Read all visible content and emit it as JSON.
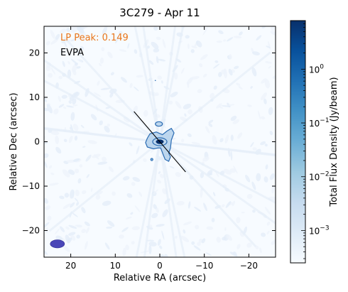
{
  "chart_data": {
    "type": "heatmap",
    "title": "3C279 - Apr 11",
    "xlabel": "Relative RA (arcsec)",
    "ylabel": "Relative Dec (arcsec)",
    "xlim": [
      26,
      -26
    ],
    "ylim": [
      -26,
      26
    ],
    "x_ticks": [
      20,
      10,
      0,
      -10,
      -20
    ],
    "x_tick_labels": [
      "20",
      "10",
      "0",
      "−10",
      "−20"
    ],
    "y_ticks": [
      20,
      10,
      0,
      -10,
      -20
    ],
    "y_tick_labels": [
      "20",
      "10",
      "0",
      "−10",
      "−20"
    ],
    "grid": false,
    "colorbar": {
      "label": "Total Flux Density (Jy/beam)",
      "scale": "log",
      "range": [
        0.00025,
        8
      ],
      "ticks": [
        1,
        0.1,
        0.01,
        0.001
      ],
      "tick_bases": [
        "10",
        "10",
        "10",
        "10"
      ],
      "tick_exponents": [
        "0",
        "−1",
        "−2",
        "−3"
      ],
      "colormap": [
        "#f7fbff",
        "#deebf7",
        "#c6dbef",
        "#9ecae1",
        "#6baed6",
        "#4292c6",
        "#2171b5",
        "#08519c",
        "#08306b"
      ]
    },
    "annotations": {
      "lp_peak": "LP Peak: 0.149",
      "evpa": "EVPA"
    },
    "peak": {
      "ra": 0,
      "dec": 0
    },
    "evpa_line": {
      "ra1": 5.8,
      "dec1": 6.8,
      "ra2": -5.8,
      "dec2": -6.8
    },
    "beam": {
      "ra": 23,
      "dec": -23,
      "major": 1.6,
      "minor": 0.9
    },
    "colors": {
      "stokes_i_contour": "#2b6cb3",
      "polarized_flux": "#e8751a",
      "lp_text": "#e8751a",
      "evpa": "#000000",
      "beam": "#4a47b8",
      "core": "#08306b"
    }
  }
}
